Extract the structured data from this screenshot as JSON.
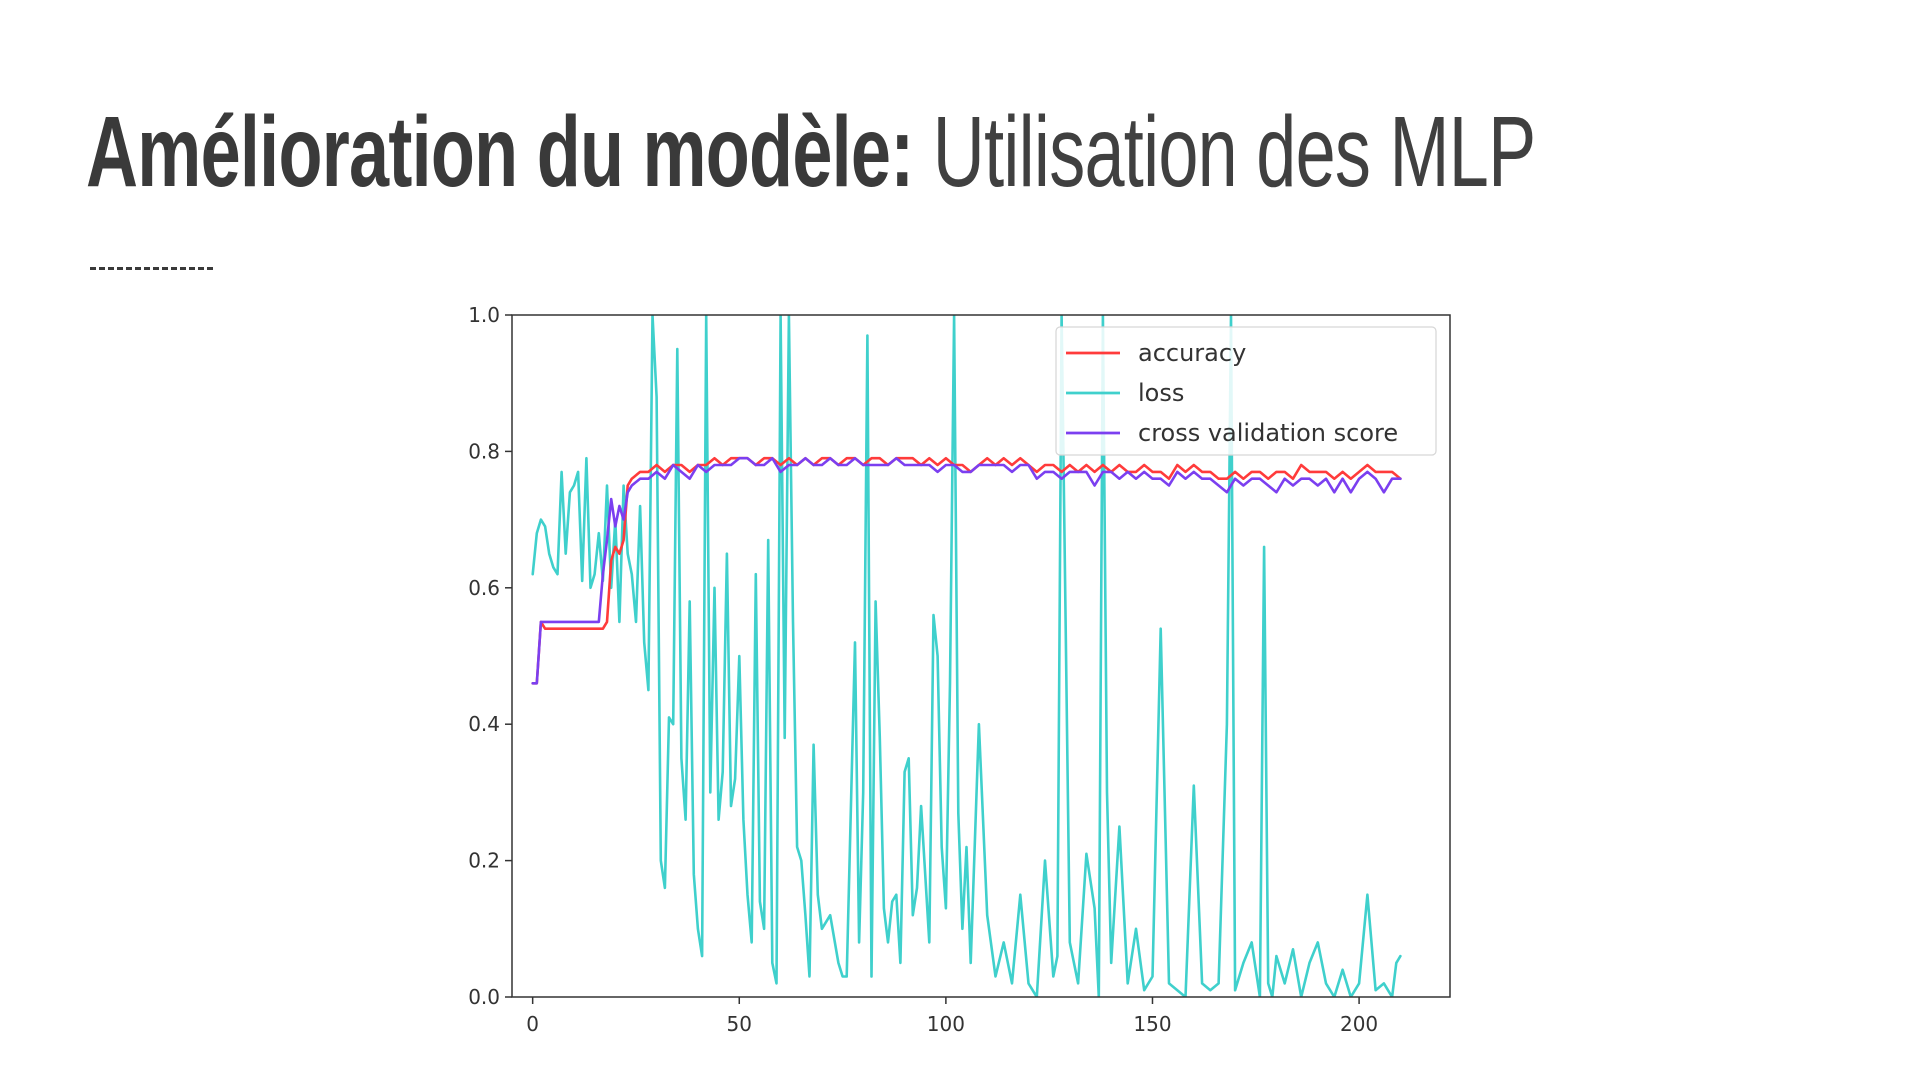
{
  "slide": {
    "title_bold": "Amélioration du modèle:",
    "title_light": "Utilisation des MLP"
  },
  "chart_data": {
    "type": "line",
    "title": "",
    "xlabel": "",
    "ylabel": "",
    "xlim": [
      -5,
      222
    ],
    "ylim": [
      0,
      1.0
    ],
    "xticks": [
      0,
      50,
      100,
      150,
      200
    ],
    "yticks": [
      0.0,
      0.2,
      0.4,
      0.6,
      0.8,
      1.0
    ],
    "grid": false,
    "legend_position": "top-right",
    "series": [
      {
        "name": "accuracy",
        "color": "#ff3b3b",
        "x": [
          0,
          1,
          2,
          3,
          5,
          8,
          10,
          12,
          14,
          16,
          17,
          18,
          19,
          20,
          21,
          22,
          23,
          24,
          26,
          28,
          30,
          32,
          34,
          36,
          38,
          40,
          42,
          44,
          46,
          48,
          50,
          52,
          54,
          56,
          58,
          60,
          62,
          64,
          66,
          68,
          70,
          72,
          74,
          76,
          78,
          80,
          82,
          84,
          86,
          88,
          90,
          92,
          94,
          96,
          98,
          100,
          102,
          104,
          106,
          108,
          110,
          112,
          114,
          116,
          118,
          120,
          122,
          124,
          126,
          128,
          130,
          132,
          134,
          136,
          138,
          140,
          142,
          144,
          146,
          148,
          150,
          152,
          154,
          156,
          158,
          160,
          162,
          164,
          166,
          168,
          170,
          172,
          174,
          176,
          178,
          180,
          182,
          184,
          186,
          188,
          190,
          192,
          194,
          196,
          198,
          200,
          202,
          204,
          206,
          208,
          210
        ],
        "values": [
          0.46,
          0.46,
          0.55,
          0.54,
          0.54,
          0.54,
          0.54,
          0.54,
          0.54,
          0.54,
          0.54,
          0.55,
          0.64,
          0.66,
          0.65,
          0.67,
          0.75,
          0.76,
          0.77,
          0.77,
          0.78,
          0.77,
          0.78,
          0.78,
          0.77,
          0.78,
          0.78,
          0.79,
          0.78,
          0.79,
          0.79,
          0.79,
          0.78,
          0.79,
          0.79,
          0.78,
          0.79,
          0.78,
          0.79,
          0.78,
          0.79,
          0.79,
          0.78,
          0.79,
          0.79,
          0.78,
          0.79,
          0.79,
          0.78,
          0.79,
          0.79,
          0.79,
          0.78,
          0.79,
          0.78,
          0.79,
          0.78,
          0.78,
          0.77,
          0.78,
          0.79,
          0.78,
          0.79,
          0.78,
          0.79,
          0.78,
          0.77,
          0.78,
          0.78,
          0.77,
          0.78,
          0.77,
          0.78,
          0.77,
          0.78,
          0.77,
          0.78,
          0.77,
          0.77,
          0.78,
          0.77,
          0.77,
          0.76,
          0.78,
          0.77,
          0.78,
          0.77,
          0.77,
          0.76,
          0.76,
          0.77,
          0.76,
          0.77,
          0.77,
          0.76,
          0.77,
          0.77,
          0.76,
          0.78,
          0.77,
          0.77,
          0.77,
          0.76,
          0.77,
          0.76,
          0.77,
          0.78,
          0.77,
          0.77,
          0.77,
          0.76
        ]
      },
      {
        "name": "loss",
        "color": "#3fd0cc",
        "x": [
          0,
          1,
          2,
          3,
          4,
          5,
          6,
          7,
          8,
          9,
          10,
          11,
          12,
          13,
          14,
          15,
          16,
          17,
          18,
          19,
          20,
          21,
          22,
          23,
          24,
          25,
          26,
          27,
          28,
          29,
          30,
          31,
          32,
          33,
          34,
          35,
          36,
          37,
          38,
          39,
          40,
          41,
          42,
          43,
          44,
          45,
          46,
          47,
          48,
          49,
          50,
          51,
          52,
          53,
          54,
          55,
          56,
          57,
          58,
          59,
          60,
          61,
          62,
          63,
          64,
          65,
          66,
          67,
          68,
          69,
          70,
          72,
          74,
          75,
          76,
          78,
          79,
          80,
          81,
          82,
          83,
          84,
          85,
          86,
          87,
          88,
          89,
          90,
          91,
          92,
          93,
          94,
          95,
          96,
          97,
          98,
          99,
          100,
          101,
          102,
          103,
          104,
          105,
          106,
          108,
          110,
          112,
          114,
          116,
          118,
          120,
          122,
          124,
          126,
          127,
          128,
          130,
          132,
          134,
          136,
          137,
          138,
          139,
          140,
          142,
          144,
          146,
          148,
          150,
          152,
          154,
          156,
          158,
          160,
          162,
          164,
          166,
          168,
          169,
          170,
          172,
          174,
          176,
          177,
          178,
          179,
          180,
          182,
          184,
          186,
          188,
          190,
          192,
          194,
          196,
          198,
          200,
          202,
          204,
          206,
          208,
          209,
          210
        ],
        "values": [
          0.62,
          0.68,
          0.7,
          0.69,
          0.65,
          0.63,
          0.62,
          0.77,
          0.65,
          0.74,
          0.75,
          0.77,
          0.61,
          0.79,
          0.6,
          0.62,
          0.68,
          0.61,
          0.75,
          0.6,
          0.7,
          0.55,
          0.75,
          0.65,
          0.62,
          0.55,
          0.72,
          0.52,
          0.45,
          1.0,
          0.88,
          0.2,
          0.16,
          0.41,
          0.4,
          0.95,
          0.35,
          0.26,
          0.58,
          0.18,
          0.1,
          0.06,
          1.0,
          0.3,
          0.6,
          0.26,
          0.33,
          0.65,
          0.28,
          0.32,
          0.5,
          0.26,
          0.15,
          0.08,
          0.62,
          0.14,
          0.1,
          0.67,
          0.05,
          0.02,
          1.0,
          0.38,
          1.0,
          0.55,
          0.22,
          0.2,
          0.12,
          0.03,
          0.37,
          0.15,
          0.1,
          0.12,
          0.05,
          0.03,
          0.03,
          0.52,
          0.08,
          0.3,
          0.97,
          0.03,
          0.58,
          0.38,
          0.13,
          0.08,
          0.14,
          0.15,
          0.05,
          0.33,
          0.35,
          0.12,
          0.16,
          0.28,
          0.18,
          0.08,
          0.56,
          0.5,
          0.22,
          0.13,
          0.46,
          1.0,
          0.27,
          0.1,
          0.22,
          0.05,
          0.4,
          0.12,
          0.03,
          0.08,
          0.02,
          0.15,
          0.02,
          0.0,
          0.2,
          0.03,
          0.06,
          1.0,
          0.08,
          0.02,
          0.21,
          0.13,
          0.0,
          1.0,
          0.3,
          0.05,
          0.25,
          0.02,
          0.1,
          0.01,
          0.03,
          0.54,
          0.02,
          0.01,
          0.0,
          0.31,
          0.02,
          0.01,
          0.02,
          0.4,
          1.0,
          0.01,
          0.05,
          0.08,
          0.0,
          0.66,
          0.02,
          0.0,
          0.06,
          0.02,
          0.07,
          0.0,
          0.05,
          0.08,
          0.02,
          0.0,
          0.04,
          0.0,
          0.02,
          0.15,
          0.01,
          0.02,
          0.0,
          0.05,
          0.06
        ]
      },
      {
        "name": "cross validation score",
        "color": "#7b3ff0",
        "x": [
          0,
          1,
          2,
          3,
          5,
          8,
          10,
          12,
          14,
          16,
          17,
          18,
          19,
          20,
          21,
          22,
          23,
          24,
          26,
          28,
          30,
          32,
          34,
          36,
          38,
          40,
          42,
          44,
          46,
          48,
          50,
          52,
          54,
          56,
          58,
          60,
          62,
          64,
          66,
          68,
          70,
          72,
          74,
          76,
          78,
          80,
          82,
          84,
          86,
          88,
          90,
          92,
          94,
          96,
          98,
          100,
          102,
          104,
          106,
          108,
          110,
          112,
          114,
          116,
          118,
          120,
          122,
          124,
          126,
          128,
          130,
          132,
          134,
          136,
          138,
          140,
          142,
          144,
          146,
          148,
          150,
          152,
          154,
          156,
          158,
          160,
          162,
          164,
          166,
          168,
          170,
          172,
          174,
          176,
          178,
          180,
          182,
          184,
          186,
          188,
          190,
          192,
          194,
          196,
          198,
          200,
          202,
          204,
          206,
          208,
          210
        ],
        "values": [
          0.46,
          0.46,
          0.55,
          0.55,
          0.55,
          0.55,
          0.55,
          0.55,
          0.55,
          0.55,
          0.62,
          0.67,
          0.73,
          0.69,
          0.72,
          0.7,
          0.74,
          0.75,
          0.76,
          0.76,
          0.77,
          0.76,
          0.78,
          0.77,
          0.76,
          0.78,
          0.77,
          0.78,
          0.78,
          0.78,
          0.79,
          0.79,
          0.78,
          0.78,
          0.79,
          0.77,
          0.78,
          0.78,
          0.79,
          0.78,
          0.78,
          0.79,
          0.78,
          0.78,
          0.79,
          0.78,
          0.78,
          0.78,
          0.78,
          0.79,
          0.78,
          0.78,
          0.78,
          0.78,
          0.77,
          0.78,
          0.78,
          0.77,
          0.77,
          0.78,
          0.78,
          0.78,
          0.78,
          0.77,
          0.78,
          0.78,
          0.76,
          0.77,
          0.77,
          0.76,
          0.77,
          0.77,
          0.77,
          0.75,
          0.77,
          0.77,
          0.76,
          0.77,
          0.76,
          0.77,
          0.76,
          0.76,
          0.75,
          0.77,
          0.76,
          0.77,
          0.76,
          0.76,
          0.75,
          0.74,
          0.76,
          0.75,
          0.76,
          0.76,
          0.75,
          0.74,
          0.76,
          0.75,
          0.76,
          0.76,
          0.75,
          0.76,
          0.74,
          0.76,
          0.74,
          0.76,
          0.77,
          0.76,
          0.74,
          0.76,
          0.76
        ]
      }
    ]
  }
}
